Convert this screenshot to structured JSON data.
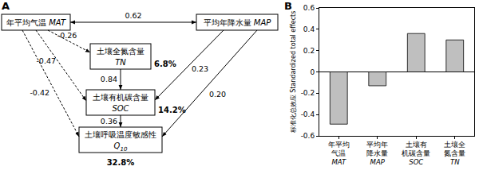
{
  "diagram": {
    "panel_label": "A",
    "nodes": [
      {
        "id": "MAT",
        "label": "年平均气温",
        "symbol": "MAT"
      },
      {
        "id": "MAP",
        "label": "平均年降水量",
        "symbol": "MAP"
      },
      {
        "id": "TN",
        "label": "土壤全氮含量",
        "symbol": "TN",
        "explained": "6.8%"
      },
      {
        "id": "SOC",
        "label": "土壤有机碳含量",
        "symbol": "SOC",
        "explained": "14.2%"
      },
      {
        "id": "Q10",
        "label": "土壤呼吸温度敏感性",
        "symbol": "Q",
        "symbol_sub": "10",
        "explained": "32.8%"
      }
    ],
    "edges": [
      {
        "from": "MAT",
        "to": "MAP",
        "label": "0.62",
        "line_style": "solid",
        "arrow": "both"
      },
      {
        "from": "MAT",
        "to": "TN",
        "label": "-0.26",
        "line_style": "dashed",
        "arrow": "end"
      },
      {
        "from": "MAT",
        "to": "SOC",
        "label": "-0.47",
        "line_style": "dashed",
        "arrow": "end"
      },
      {
        "from": "MAT",
        "to": "Q10",
        "label": "-0.42",
        "line_style": "dashed",
        "arrow": "end"
      },
      {
        "from": "TN",
        "to": "SOC",
        "label": "0.84",
        "line_style": "solid",
        "arrow": "end"
      },
      {
        "from": "MAP",
        "to": "SOC",
        "label": "0.23",
        "line_style": "solid",
        "arrow": "end"
      },
      {
        "from": "MAP",
        "to": "Q10",
        "label": "0.20",
        "line_style": "solid",
        "arrow": "end"
      },
      {
        "from": "SOC",
        "to": "Q10",
        "label": "0.36",
        "line_style": "solid",
        "arrow": "end"
      }
    ]
  },
  "chart_data": {
    "type": "bar",
    "annotations": [
      "B"
    ],
    "y_label": "标准化总效应 Standardized total effects",
    "categories": [
      "年平均\n气温\nMAT",
      "平均年\n降水量\nMAP",
      "土壤有\n机碳含量\nSOC",
      "土壤全\n氮含量\nTN"
    ],
    "values": [
      -0.49,
      -0.13,
      0.36,
      0.3
    ],
    "color": "#bfbfbf",
    "ylim": [
      -0.6,
      0.6
    ],
    "yticks": [
      -0.6,
      -0.4,
      -0.2,
      0,
      0.2,
      0.4,
      0.6
    ],
    "grid": false
  }
}
